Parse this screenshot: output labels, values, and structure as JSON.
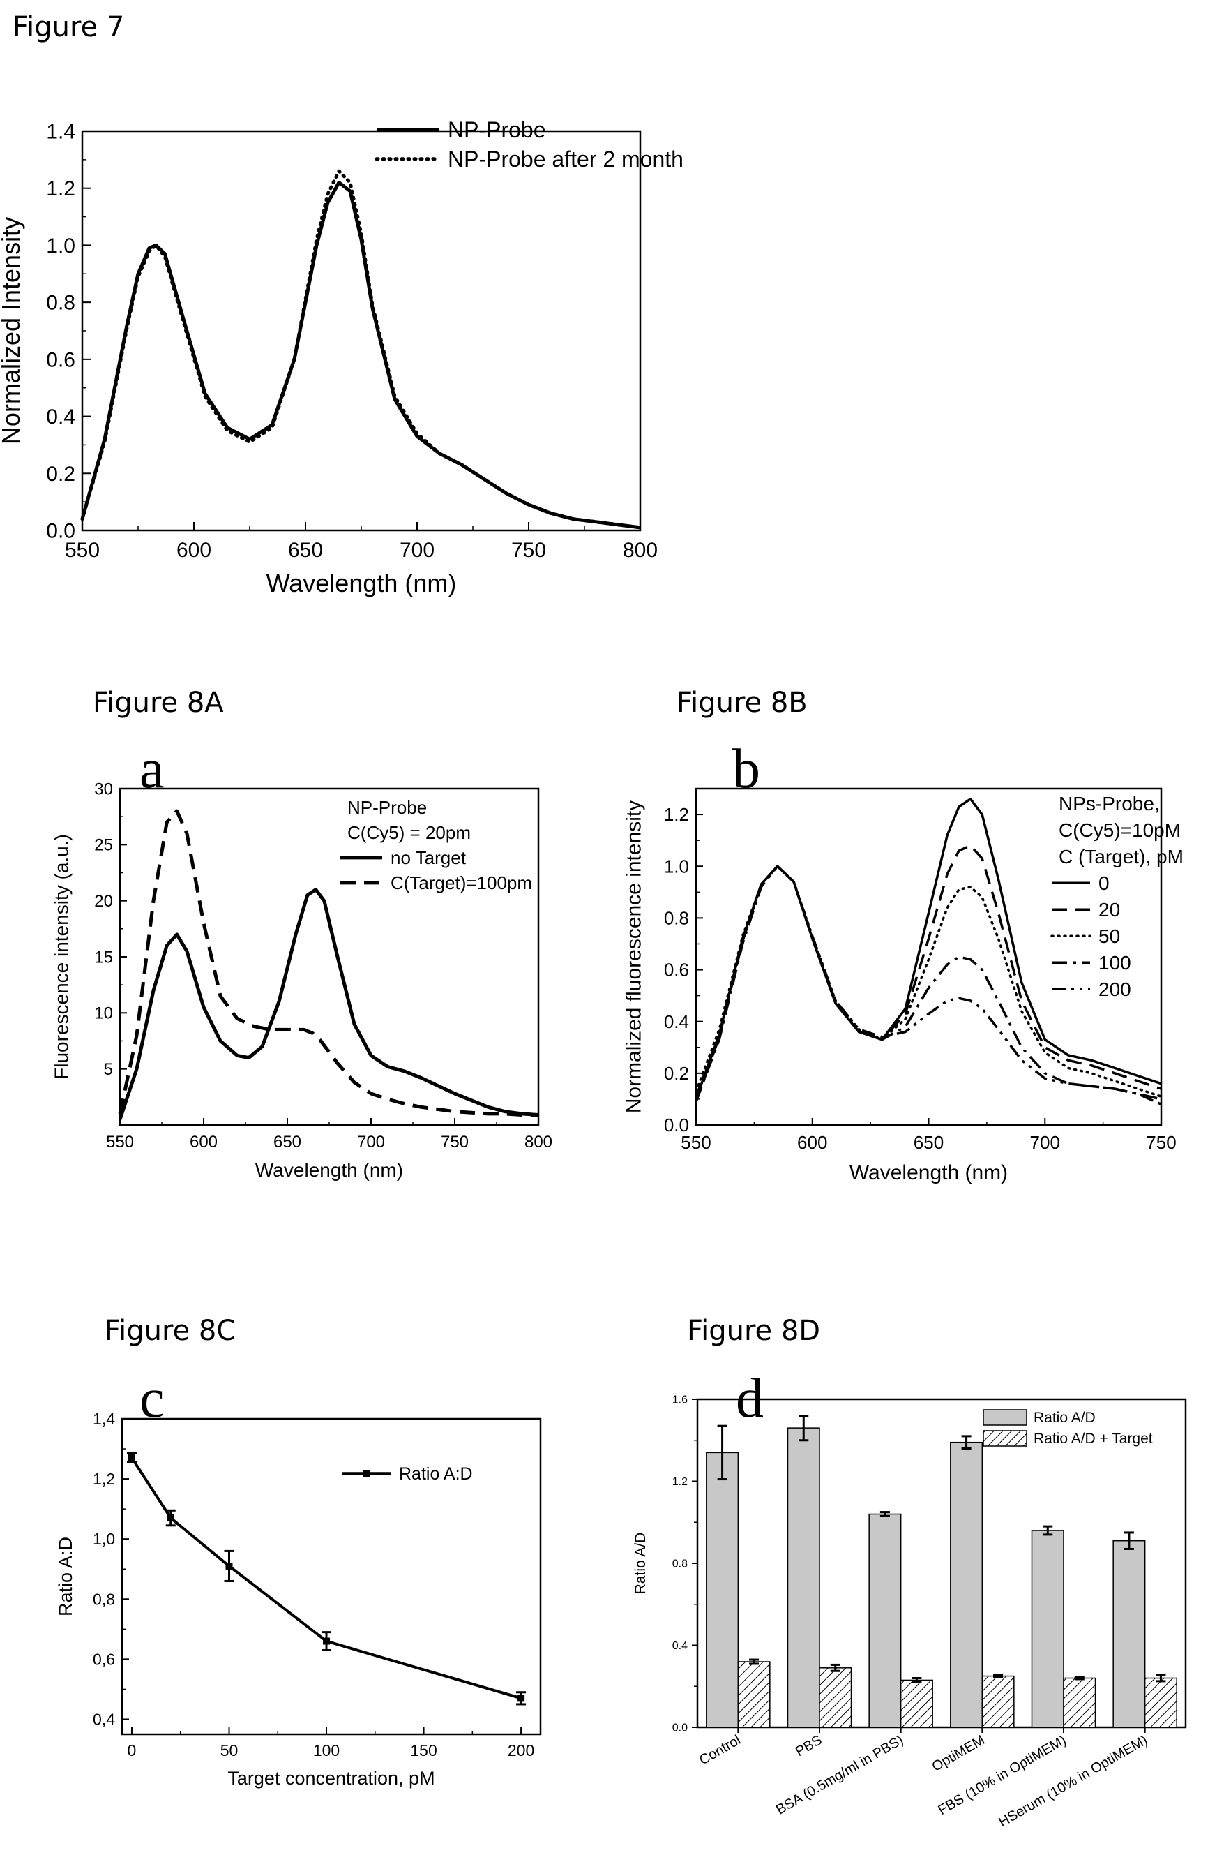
{
  "figure_titles": {
    "fig7": "Figure 7",
    "fig8a": "Figure 8A",
    "fig8b": "Figure 8B",
    "fig8c": "Figure 8C",
    "fig8d": "Figure 8D"
  },
  "panel_letters": {
    "a": "a",
    "b": "b",
    "c": "c",
    "d": "d"
  },
  "chart_data": [
    {
      "id": "fig7",
      "type": "line",
      "xlabel": "Wavelength (nm)",
      "ylabel": "Normalized Intensity",
      "xlim": [
        550,
        800
      ],
      "ylim": [
        0.0,
        1.4
      ],
      "xticks": [
        "550",
        "600",
        "650",
        "700",
        "750",
        "800"
      ],
      "yticks": [
        "0.0",
        "0.2",
        "0.4",
        "0.6",
        "0.8",
        "1.0",
        "1.2",
        "1.4"
      ],
      "legend_position": "top-right",
      "series": [
        {
          "name": "NP-Probe",
          "style": "solid",
          "x": [
            550,
            560,
            570,
            575,
            580,
            583,
            587,
            595,
            605,
            615,
            625,
            635,
            645,
            650,
            655,
            660,
            665,
            670,
            675,
            680,
            690,
            700,
            710,
            720,
            730,
            740,
            750,
            760,
            770,
            780,
            790,
            800
          ],
          "y": [
            0.04,
            0.32,
            0.72,
            0.9,
            0.99,
            1.0,
            0.97,
            0.75,
            0.48,
            0.36,
            0.32,
            0.37,
            0.6,
            0.8,
            1.0,
            1.15,
            1.22,
            1.19,
            1.02,
            0.78,
            0.46,
            0.33,
            0.27,
            0.23,
            0.18,
            0.13,
            0.09,
            0.06,
            0.04,
            0.03,
            0.02,
            0.01
          ]
        },
        {
          "name": "NP-Probe after 2 month",
          "style": "dotted",
          "x": [
            550,
            560,
            570,
            575,
            580,
            583,
            587,
            595,
            605,
            615,
            625,
            635,
            645,
            650,
            655,
            660,
            665,
            670,
            675,
            680,
            690,
            700,
            710,
            720,
            730,
            740,
            750,
            760,
            770,
            780,
            790,
            800
          ],
          "y": [
            0.04,
            0.31,
            0.71,
            0.89,
            0.98,
            1.0,
            0.96,
            0.74,
            0.47,
            0.35,
            0.31,
            0.36,
            0.6,
            0.81,
            1.02,
            1.18,
            1.26,
            1.22,
            1.04,
            0.79,
            0.47,
            0.34,
            0.27,
            0.23,
            0.18,
            0.13,
            0.09,
            0.06,
            0.04,
            0.03,
            0.02,
            0.01
          ]
        }
      ]
    },
    {
      "id": "fig8a",
      "type": "line",
      "xlabel": "Wavelength (nm)",
      "ylabel": "Fluorescence intensity (a.u.)",
      "xlim": [
        550,
        800
      ],
      "ylim": [
        0,
        30
      ],
      "xticks": [
        "550",
        "600",
        "650",
        "700",
        "750",
        "800"
      ],
      "yticks": [
        "5",
        "10",
        "15",
        "20",
        "25",
        "30"
      ],
      "legend_title": [
        "NP-Probe",
        "C(Cy5) = 20pm"
      ],
      "legend_position": "top-right",
      "series": [
        {
          "name": "no Target",
          "style": "solid",
          "x": [
            550,
            560,
            570,
            578,
            584,
            590,
            600,
            610,
            620,
            627,
            635,
            645,
            655,
            662,
            667,
            672,
            680,
            690,
            700,
            710,
            720,
            730,
            740,
            750,
            760,
            770,
            780,
            790,
            800
          ],
          "y": [
            0.5,
            5,
            12,
            16,
            17,
            15.5,
            10.5,
            7.5,
            6.2,
            6,
            7,
            11,
            17,
            20.5,
            21,
            20,
            15,
            9,
            6.2,
            5.2,
            4.8,
            4.2,
            3.5,
            2.8,
            2.2,
            1.6,
            1.2,
            1,
            0.9
          ]
        },
        {
          "name": "C(Target)=100pm",
          "style": "dashed",
          "x": [
            550,
            560,
            570,
            578,
            584,
            590,
            600,
            610,
            620,
            630,
            640,
            650,
            660,
            665,
            670,
            680,
            690,
            700,
            710,
            720,
            730,
            740,
            750,
            760,
            770,
            780,
            790,
            800
          ],
          "y": [
            1,
            8,
            20,
            27,
            28,
            26,
            18,
            11.5,
            9.5,
            8.8,
            8.5,
            8.5,
            8.5,
            8.2,
            7.5,
            5.5,
            3.8,
            2.8,
            2.3,
            1.9,
            1.6,
            1.4,
            1.2,
            1.1,
            1,
            1,
            0.9,
            0.9
          ]
        }
      ]
    },
    {
      "id": "fig8b",
      "type": "line",
      "xlabel": "Wavelength (nm)",
      "ylabel": "Normalized fluorescence intensity",
      "xlim": [
        550,
        750
      ],
      "ylim": [
        0.0,
        1.3
      ],
      "xticks": [
        "550",
        "600",
        "650",
        "700",
        "750"
      ],
      "yticks": [
        "0.0",
        "0.2",
        "0.4",
        "0.6",
        "0.8",
        "1.0",
        "1.2"
      ],
      "legend_title": [
        "NPs-Probe,",
        "C(Cy5)=10pM",
        "C (Target), pM"
      ],
      "legend_position": "top-right",
      "series": [
        {
          "name": "0",
          "style": "solid",
          "x": [
            550,
            560,
            570,
            578,
            585,
            592,
            600,
            610,
            620,
            630,
            640,
            650,
            658,
            663,
            668,
            673,
            680,
            690,
            700,
            710,
            720,
            730,
            740,
            750
          ],
          "y": [
            0.1,
            0.35,
            0.72,
            0.93,
            1.0,
            0.94,
            0.72,
            0.47,
            0.36,
            0.33,
            0.45,
            0.82,
            1.12,
            1.23,
            1.26,
            1.2,
            0.95,
            0.55,
            0.33,
            0.27,
            0.25,
            0.22,
            0.19,
            0.16
          ]
        },
        {
          "name": "20",
          "style": "dashed",
          "x": [
            550,
            560,
            570,
            578,
            585,
            592,
            600,
            610,
            620,
            630,
            640,
            650,
            658,
            663,
            668,
            673,
            680,
            690,
            700,
            710,
            720,
            730,
            740,
            750
          ],
          "y": [
            0.09,
            0.34,
            0.71,
            0.93,
            1.0,
            0.94,
            0.72,
            0.47,
            0.36,
            0.33,
            0.43,
            0.72,
            0.97,
            1.06,
            1.08,
            1.03,
            0.82,
            0.48,
            0.3,
            0.25,
            0.23,
            0.2,
            0.17,
            0.14
          ]
        },
        {
          "name": "50",
          "style": "dotted",
          "x": [
            550,
            560,
            570,
            578,
            585,
            592,
            600,
            610,
            620,
            630,
            640,
            650,
            658,
            663,
            668,
            673,
            680,
            690,
            700,
            710,
            720,
            730,
            740,
            750
          ],
          "y": [
            0.13,
            0.37,
            0.73,
            0.93,
            1.0,
            0.94,
            0.73,
            0.48,
            0.37,
            0.33,
            0.41,
            0.64,
            0.84,
            0.91,
            0.92,
            0.88,
            0.72,
            0.44,
            0.28,
            0.22,
            0.2,
            0.17,
            0.14,
            0.11
          ]
        },
        {
          "name": "100",
          "style": "dashdot",
          "x": [
            550,
            560,
            570,
            578,
            585,
            592,
            600,
            610,
            620,
            630,
            640,
            650,
            658,
            663,
            668,
            673,
            680,
            690,
            700,
            710,
            720,
            730,
            740,
            750
          ],
          "y": [
            0.09,
            0.33,
            0.7,
            0.92,
            1.0,
            0.94,
            0.72,
            0.47,
            0.36,
            0.33,
            0.38,
            0.53,
            0.62,
            0.65,
            0.64,
            0.6,
            0.48,
            0.3,
            0.2,
            0.16,
            0.15,
            0.14,
            0.12,
            0.1
          ]
        },
        {
          "name": "200",
          "style": "dashdotdot",
          "x": [
            550,
            560,
            570,
            578,
            585,
            592,
            600,
            610,
            620,
            630,
            640,
            650,
            658,
            663,
            668,
            673,
            680,
            690,
            700,
            710,
            720,
            730,
            740,
            750
          ],
          "y": [
            0.11,
            0.35,
            0.72,
            0.93,
            1.0,
            0.94,
            0.73,
            0.48,
            0.37,
            0.34,
            0.36,
            0.43,
            0.48,
            0.49,
            0.48,
            0.45,
            0.37,
            0.25,
            0.18,
            0.16,
            0.15,
            0.14,
            0.12,
            0.08
          ]
        }
      ]
    },
    {
      "id": "fig8c",
      "type": "line",
      "xlabel": "Target concentration, pM",
      "ylabel": "Ratio A:D",
      "xlim": [
        -5,
        210
      ],
      "ylim": [
        0.35,
        1.4
      ],
      "xticks": [
        "0",
        "50",
        "100",
        "150",
        "200"
      ],
      "yticks": [
        "0,4",
        "0,6",
        "0,8",
        "1,0",
        "1,2",
        "1,4"
      ],
      "legend_position": "top-right",
      "series": [
        {
          "name": "Ratio A:D",
          "style": "solid-square",
          "x": [
            0,
            20,
            50,
            100,
            200
          ],
          "y": [
            1.27,
            1.07,
            0.91,
            0.66,
            0.47
          ],
          "err": [
            0.015,
            0.025,
            0.05,
            0.03,
            0.02
          ]
        }
      ]
    },
    {
      "id": "fig8d",
      "type": "bar",
      "ylabel": "Ratio A/D",
      "ylim": [
        0.0,
        1.6
      ],
      "yticks": [
        "0.0",
        "0.4",
        "0.8",
        "1.2",
        "1.6"
      ],
      "categories": [
        "Control",
        "PBS",
        "BSA (0.5mg/ml in PBS)",
        "OptiMEM",
        "FBS (10% in OptiMEM)",
        "HSerum (10% in OptiMEM)"
      ],
      "legend_position": "top-right",
      "series": [
        {
          "name": "Ratio A/D",
          "fill": "#c8c8c8",
          "values": [
            1.34,
            1.46,
            1.04,
            1.39,
            0.96,
            0.91
          ],
          "err": [
            0.13,
            0.06,
            0.01,
            0.03,
            0.02,
            0.04
          ]
        },
        {
          "name": "Ratio A/D + Target",
          "fill": "hatch",
          "values": [
            0.32,
            0.29,
            0.23,
            0.25,
            0.24,
            0.24
          ],
          "err": [
            0.01,
            0.015,
            0.01,
            0.005,
            0.005,
            0.015
          ]
        }
      ]
    }
  ]
}
